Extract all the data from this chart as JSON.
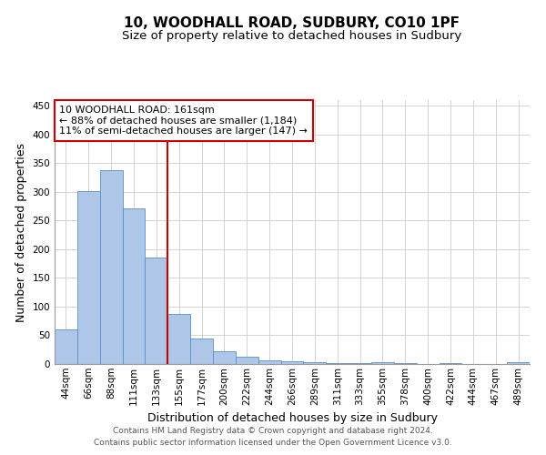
{
  "title_line1": "10, WOODHALL ROAD, SUDBURY, CO10 1PF",
  "title_line2": "Size of property relative to detached houses in Sudbury",
  "xlabel": "Distribution of detached houses by size in Sudbury",
  "ylabel": "Number of detached properties",
  "footnote1": "Contains HM Land Registry data © Crown copyright and database right 2024.",
  "footnote2": "Contains public sector information licensed under the Open Government Licence v3.0.",
  "bar_labels": [
    "44sqm",
    "66sqm",
    "88sqm",
    "111sqm",
    "133sqm",
    "155sqm",
    "177sqm",
    "200sqm",
    "222sqm",
    "244sqm",
    "266sqm",
    "289sqm",
    "311sqm",
    "333sqm",
    "355sqm",
    "378sqm",
    "400sqm",
    "422sqm",
    "444sqm",
    "467sqm",
    "489sqm"
  ],
  "bar_values": [
    61,
    301,
    338,
    271,
    185,
    88,
    45,
    22,
    12,
    6,
    5,
    3,
    2,
    2,
    3,
    1,
    0,
    1,
    0,
    0,
    3
  ],
  "bar_color": "#aec6e8",
  "bar_edgecolor": "#5b8ec4",
  "background_color": "#ffffff",
  "grid_color": "#cccccc",
  "ylim": [
    0,
    460
  ],
  "yticks": [
    0,
    50,
    100,
    150,
    200,
    250,
    300,
    350,
    400,
    450
  ],
  "vline_bar_index": 4,
  "vline_color": "#cc0000",
  "annotation_text": "10 WOODHALL ROAD: 161sqm\n← 88% of detached houses are smaller (1,184)\n11% of semi-detached houses are larger (147) →",
  "annotation_box_color": "#ffffff",
  "annotation_box_edgecolor": "#cc0000",
  "title_fontsize": 11,
  "subtitle_fontsize": 9.5,
  "ylabel_fontsize": 9,
  "xlabel_fontsize": 9,
  "tick_fontsize": 7.5,
  "annotation_fontsize": 8,
  "footnote_fontsize": 6.5
}
